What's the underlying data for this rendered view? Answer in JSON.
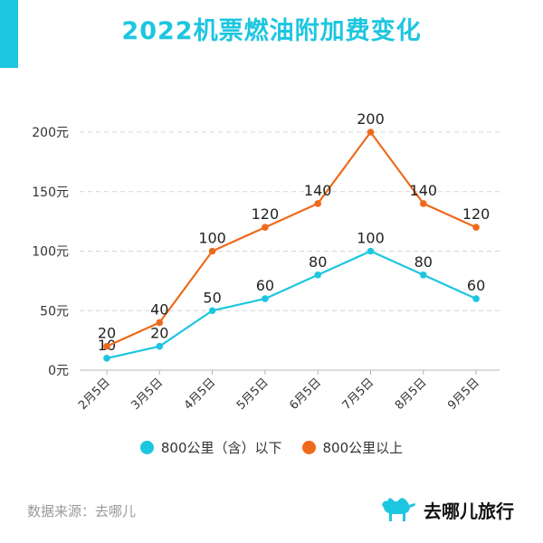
{
  "title": "2022机票燃油附加费变化",
  "legend": {
    "series0": "800公里（含）以下",
    "series1": "800公里以上"
  },
  "source": "数据来源：去哪儿",
  "brand": {
    "name": "去哪儿旅行",
    "logo_icon": "camel-icon"
  },
  "colors": {
    "accent": "#1dc6e0",
    "series0": "#1dc6e0",
    "series1": "#ee6a1b",
    "grid": "#d6d6d6"
  },
  "chart_data": {
    "type": "line",
    "categories": [
      "2月5日",
      "3月5日",
      "4月5日",
      "5月5日",
      "6月5日",
      "7月5日",
      "8月5日",
      "9月5日"
    ],
    "series": [
      {
        "name": "800公里（含）以下",
        "values": [
          10,
          20,
          50,
          60,
          80,
          100,
          80,
          60
        ]
      },
      {
        "name": "800公里以上",
        "values": [
          20,
          40,
          100,
          120,
          140,
          200,
          140,
          120
        ]
      }
    ],
    "y_ticks": [
      "0元",
      "50元",
      "100元",
      "150元",
      "200元"
    ],
    "ylim": [
      0,
      200
    ],
    "grid": true,
    "legend_position": "bottom"
  }
}
